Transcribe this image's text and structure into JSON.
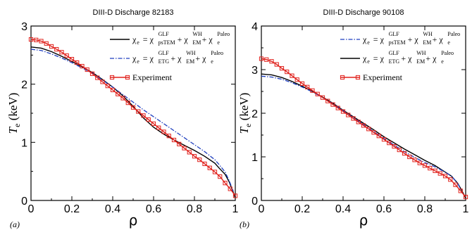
{
  "chart_data": [
    {
      "type": "line",
      "title": "DIII-D Discharge 82183",
      "panel_label": "(a)",
      "xlabel": "ρ",
      "ylabel": {
        "main": "T",
        "sub": "e",
        "unit": " (keV)"
      },
      "xlim": [
        0,
        1
      ],
      "ylim": [
        0,
        3
      ],
      "xticks": [
        "0",
        "0.2",
        "0.4",
        "0.6",
        "0.8",
        "1"
      ],
      "yticks": [
        "0",
        "1",
        "2",
        "3"
      ],
      "legend_position": "top-right",
      "legend": [
        {
          "style": "black-solid",
          "parts": [
            "χ",
            "e",
            " = χ",
            "psTEM",
            "GLF",
            " + χ",
            "EM",
            "WH",
            " + χ",
            "e",
            "Paleo"
          ]
        },
        {
          "style": "blue-dashdot",
          "parts": [
            "χ",
            "e",
            " = χ",
            "ETG",
            "GLF",
            " + χ",
            "EM",
            "WH",
            " + χ",
            "e",
            "Paleo"
          ]
        },
        {
          "style": "red-squares",
          "parts": [
            "Experiment"
          ]
        }
      ],
      "series": [
        {
          "style": "black-solid",
          "color": "#000000",
          "x": [
            0,
            0.05,
            0.1,
            0.15,
            0.2,
            0.25,
            0.3,
            0.35,
            0.4,
            0.45,
            0.5,
            0.55,
            0.6,
            0.65,
            0.7,
            0.75,
            0.8,
            0.85,
            0.9,
            0.92,
            0.95,
            0.97,
            0.99,
            1.0
          ],
          "y": [
            2.64,
            2.62,
            2.56,
            2.48,
            2.39,
            2.3,
            2.2,
            2.08,
            1.95,
            1.8,
            1.62,
            1.42,
            1.26,
            1.14,
            1.04,
            0.95,
            0.86,
            0.76,
            0.64,
            0.56,
            0.45,
            0.32,
            0.14,
            0.04
          ]
        },
        {
          "style": "blue-dashdot",
          "color": "#1f3fbf",
          "x": [
            0,
            0.05,
            0.1,
            0.15,
            0.2,
            0.25,
            0.3,
            0.35,
            0.4,
            0.45,
            0.5,
            0.55,
            0.6,
            0.65,
            0.7,
            0.75,
            0.8,
            0.85,
            0.9,
            0.92,
            0.95,
            0.97,
            0.99
          ],
          "y": [
            2.6,
            2.58,
            2.52,
            2.45,
            2.37,
            2.28,
            2.19,
            2.07,
            1.95,
            1.82,
            1.69,
            1.56,
            1.44,
            1.32,
            1.2,
            1.08,
            0.96,
            0.84,
            0.7,
            0.62,
            0.49,
            0.34,
            0.16
          ]
        },
        {
          "style": "red-squares",
          "color": "#e0201b",
          "x": [
            0,
            0.025,
            0.05,
            0.075,
            0.1,
            0.125,
            0.15,
            0.175,
            0.2,
            0.225,
            0.25,
            0.275,
            0.3,
            0.325,
            0.35,
            0.375,
            0.4,
            0.425,
            0.45,
            0.475,
            0.5,
            0.525,
            0.55,
            0.575,
            0.6,
            0.625,
            0.65,
            0.675,
            0.7,
            0.725,
            0.75,
            0.775,
            0.8,
            0.825,
            0.85,
            0.875,
            0.9,
            0.925,
            0.95,
            0.975,
            1.0
          ],
          "y": [
            2.77,
            2.76,
            2.74,
            2.7,
            2.65,
            2.6,
            2.55,
            2.49,
            2.43,
            2.37,
            2.31,
            2.25,
            2.18,
            2.11,
            2.04,
            1.97,
            1.9,
            1.83,
            1.76,
            1.68,
            1.6,
            1.53,
            1.46,
            1.39,
            1.32,
            1.25,
            1.18,
            1.11,
            1.04,
            0.97,
            0.9,
            0.83,
            0.76,
            0.7,
            0.63,
            0.56,
            0.49,
            0.41,
            0.3,
            0.2,
            0.08
          ]
        }
      ]
    },
    {
      "type": "line",
      "title": "DIII-D Discharge 90108",
      "panel_label": "(b)",
      "xlabel": "ρ",
      "ylabel": {
        "main": "T",
        "sub": "e",
        "unit": " (keV)"
      },
      "xlim": [
        0,
        1
      ],
      "ylim": [
        0,
        4
      ],
      "xticks": [
        "0",
        "0.2",
        "0.4",
        "0.6",
        "0.8",
        "1"
      ],
      "yticks": [
        "0",
        "1",
        "2",
        "3",
        "4"
      ],
      "legend_position": "top-right",
      "legend": [
        {
          "style": "blue-dashdot",
          "parts": [
            "χ",
            "e",
            " = χ",
            "psTEM",
            "GLF",
            " + χ",
            "EM",
            "WH",
            " + χ",
            "e",
            "Paleo"
          ]
        },
        {
          "style": "black-solid",
          "parts": [
            "χ",
            "e",
            " = χ",
            "ETG",
            "GLF",
            " + χ",
            "EM",
            "WH",
            " + χ",
            "e",
            "Paleo"
          ]
        },
        {
          "style": "red-squares",
          "parts": [
            "Experiment"
          ]
        }
      ],
      "series": [
        {
          "style": "black-solid",
          "color": "#000000",
          "x": [
            0,
            0.05,
            0.1,
            0.15,
            0.2,
            0.25,
            0.3,
            0.35,
            0.4,
            0.45,
            0.5,
            0.55,
            0.6,
            0.65,
            0.7,
            0.75,
            0.8,
            0.85,
            0.9,
            0.93,
            0.96,
            0.98,
            1.0
          ],
          "y": [
            2.9,
            2.88,
            2.82,
            2.73,
            2.62,
            2.5,
            2.37,
            2.23,
            2.07,
            1.92,
            1.77,
            1.62,
            1.46,
            1.32,
            1.18,
            1.05,
            0.92,
            0.8,
            0.65,
            0.56,
            0.4,
            0.24,
            0.05
          ]
        },
        {
          "style": "blue-dashdot",
          "color": "#1f3fbf",
          "x": [
            0,
            0.05,
            0.1,
            0.15,
            0.2,
            0.25,
            0.3,
            0.35,
            0.4,
            0.45,
            0.5,
            0.55,
            0.6,
            0.65,
            0.7,
            0.75,
            0.8,
            0.85,
            0.9,
            0.93,
            0.96,
            0.98
          ],
          "y": [
            2.85,
            2.83,
            2.78,
            2.7,
            2.6,
            2.49,
            2.36,
            2.22,
            2.06,
            1.9,
            1.74,
            1.58,
            1.42,
            1.27,
            1.12,
            0.99,
            0.87,
            0.77,
            0.65,
            0.56,
            0.4,
            0.22
          ]
        },
        {
          "style": "red-squares",
          "color": "#e0201b",
          "x": [
            0,
            0.025,
            0.05,
            0.075,
            0.1,
            0.125,
            0.15,
            0.175,
            0.2,
            0.225,
            0.25,
            0.275,
            0.3,
            0.325,
            0.35,
            0.375,
            0.4,
            0.425,
            0.45,
            0.475,
            0.5,
            0.525,
            0.55,
            0.575,
            0.6,
            0.625,
            0.65,
            0.675,
            0.7,
            0.725,
            0.75,
            0.775,
            0.8,
            0.825,
            0.85,
            0.875,
            0.9,
            0.925,
            0.95,
            0.975,
            1.0
          ],
          "y": [
            3.25,
            3.23,
            3.19,
            3.12,
            3.03,
            2.95,
            2.86,
            2.77,
            2.68,
            2.6,
            2.52,
            2.44,
            2.36,
            2.28,
            2.2,
            2.12,
            2.04,
            1.96,
            1.88,
            1.8,
            1.72,
            1.64,
            1.56,
            1.48,
            1.4,
            1.32,
            1.24,
            1.16,
            1.08,
            1.0,
            0.93,
            0.86,
            0.8,
            0.74,
            0.68,
            0.62,
            0.56,
            0.48,
            0.36,
            0.22,
            0.08
          ]
        }
      ]
    }
  ]
}
